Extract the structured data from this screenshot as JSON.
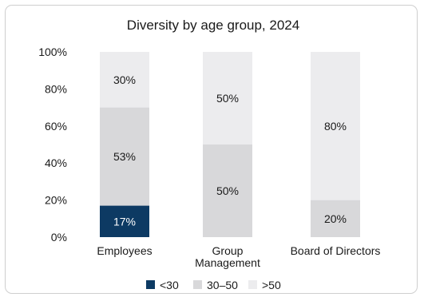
{
  "chart_data": {
    "type": "bar",
    "stacked": true,
    "title": "Diversity by age group, 2024",
    "xlabel": "",
    "ylabel": "",
    "ylim": [
      0,
      100
    ],
    "yticks": [
      "0%",
      "20%",
      "40%",
      "60%",
      "80%",
      "100%"
    ],
    "categories": [
      [
        "Employees"
      ],
      [
        "Group",
        "Management"
      ],
      [
        "Board of Directors"
      ]
    ],
    "series": [
      {
        "name": "<30",
        "color": "#0d3a63",
        "label_color": "#ffffff",
        "values": [
          17,
          0,
          0
        ],
        "labels": [
          "17%",
          "",
          ""
        ]
      },
      {
        "name": "30–50",
        "color": "#d8d8da",
        "label_color": "#1a1a1a",
        "values": [
          53,
          50,
          20
        ],
        "labels": [
          "53%",
          "50%",
          "20%"
        ]
      },
      {
        "name": ">50",
        "color": "#ececee",
        "label_color": "#1a1a1a",
        "values": [
          30,
          50,
          80
        ],
        "labels": [
          "30%",
          "50%",
          "80%"
        ]
      }
    ],
    "grid": false,
    "legend_position": "bottom-center"
  }
}
